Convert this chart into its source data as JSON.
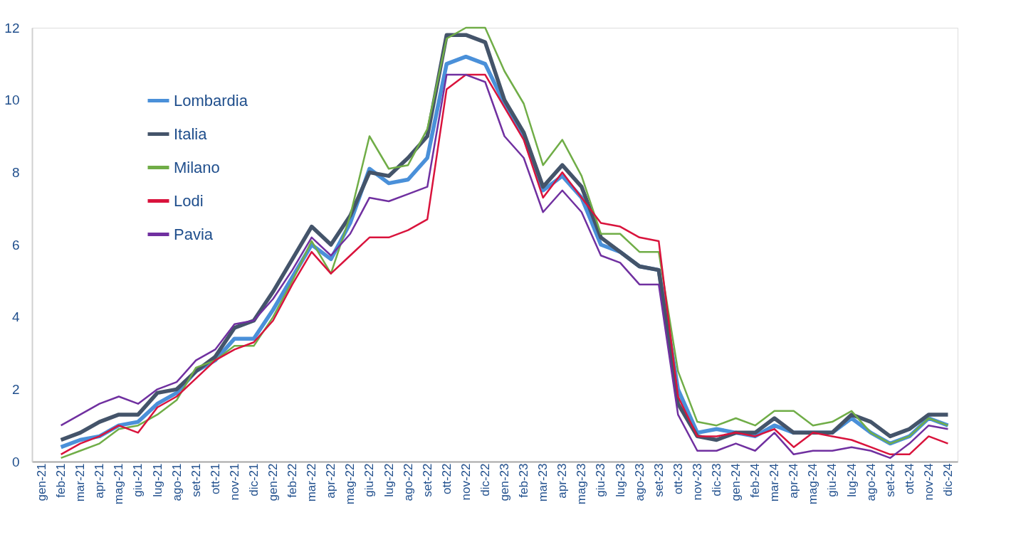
{
  "chart_data": {
    "type": "line",
    "categories": [
      "gen-21",
      "feb-21",
      "mar-21",
      "apr-21",
      "mag-21",
      "giu-21",
      "lug-21",
      "ago-21",
      "set-21",
      "ott-21",
      "nov-21",
      "dic-21",
      "gen-22",
      "feb-22",
      "mar-22",
      "apr-22",
      "mag-22",
      "giu-22",
      "lug-22",
      "ago-22",
      "set-22",
      "ott-22",
      "nov-22",
      "dic-22",
      "gen-23",
      "feb-23",
      "mar-23",
      "apr-23",
      "mag-23",
      "giu-23",
      "lug-23",
      "ago-23",
      "set-23",
      "ott-23",
      "nov-23",
      "dic-23",
      "gen-24",
      "feb-24",
      "mar-24",
      "apr-24",
      "mag-24",
      "giu-24",
      "lug-24",
      "ago-24",
      "set-24",
      "ott-24",
      "nov-24",
      "dic-24"
    ],
    "series": [
      {
        "name": "Lombardia",
        "color": "#4a90d9",
        "values": [
          null,
          0.4,
          0.6,
          0.7,
          1.0,
          1.1,
          1.6,
          1.9,
          2.5,
          2.8,
          3.4,
          3.4,
          4.2,
          5.1,
          6.0,
          5.6,
          6.6,
          8.1,
          7.7,
          7.8,
          8.4,
          11.0,
          11.2,
          11.0,
          9.9,
          9.0,
          7.5,
          7.9,
          7.3,
          6.0,
          5.8,
          5.4,
          5.3,
          2.0,
          0.8,
          0.9,
          0.8,
          0.7,
          1.0,
          0.8,
          0.8,
          0.8,
          1.2,
          0.8,
          0.5,
          0.7,
          1.2,
          1.0
        ]
      },
      {
        "name": "Italia",
        "color": "#44546a",
        "values": [
          null,
          0.6,
          0.8,
          1.1,
          1.3,
          1.3,
          1.9,
          2.0,
          2.5,
          2.9,
          3.7,
          3.9,
          4.7,
          5.6,
          6.5,
          6.0,
          6.8,
          8.0,
          7.9,
          8.4,
          9.0,
          11.8,
          11.8,
          11.6,
          10.0,
          9.1,
          7.6,
          8.2,
          7.6,
          6.2,
          5.8,
          5.4,
          5.3,
          1.6,
          0.7,
          0.6,
          0.8,
          0.8,
          1.2,
          0.8,
          0.8,
          0.8,
          1.3,
          1.1,
          0.7,
          0.9,
          1.3,
          1.3
        ]
      },
      {
        "name": "Milano",
        "color": "#70ad47",
        "values": [
          null,
          0.1,
          0.3,
          0.5,
          0.9,
          1.0,
          1.3,
          1.7,
          2.6,
          2.8,
          3.2,
          3.2,
          4.0,
          5.0,
          6.1,
          5.2,
          6.8,
          9.0,
          8.1,
          8.2,
          9.2,
          11.7,
          12.0,
          12.0,
          10.8,
          9.9,
          8.2,
          8.9,
          7.9,
          6.3,
          6.3,
          5.8,
          5.8,
          2.5,
          1.1,
          1.0,
          1.2,
          1.0,
          1.4,
          1.4,
          1.0,
          1.1,
          1.4,
          0.8,
          0.5,
          0.7,
          1.2,
          1.0
        ]
      },
      {
        "name": "Lodi",
        "color": "#d9133c",
        "values": [
          null,
          0.2,
          0.5,
          0.7,
          1.0,
          0.8,
          1.5,
          1.8,
          2.3,
          2.8,
          3.1,
          3.3,
          3.9,
          4.9,
          5.8,
          5.2,
          5.7,
          6.2,
          6.2,
          6.4,
          6.7,
          10.3,
          10.7,
          10.7,
          9.8,
          8.9,
          7.3,
          8.0,
          7.3,
          6.6,
          6.5,
          6.2,
          6.1,
          1.8,
          0.7,
          0.7,
          0.8,
          0.7,
          0.9,
          0.4,
          0.8,
          0.7,
          0.6,
          0.4,
          0.2,
          0.2,
          0.7,
          0.5
        ]
      },
      {
        "name": "Pavia",
        "color": "#7030a0",
        "values": [
          null,
          1.0,
          1.3,
          1.6,
          1.8,
          1.6,
          2.0,
          2.2,
          2.8,
          3.1,
          3.8,
          3.9,
          4.5,
          5.3,
          6.2,
          5.7,
          6.3,
          7.3,
          7.2,
          7.4,
          7.6,
          10.7,
          10.7,
          10.5,
          9.0,
          8.4,
          6.9,
          7.5,
          6.9,
          5.7,
          5.5,
          4.9,
          4.9,
          1.3,
          0.3,
          0.3,
          0.5,
          0.3,
          0.8,
          0.2,
          0.3,
          0.3,
          0.4,
          0.3,
          0.1,
          0.5,
          1.0,
          0.9
        ]
      }
    ],
    "ylim": [
      0,
      12
    ],
    "yticks": [
      0,
      2,
      4,
      6,
      8,
      10,
      12
    ],
    "grid": false,
    "legend": "top left",
    "marker": "none",
    "line_style": "solid"
  }
}
